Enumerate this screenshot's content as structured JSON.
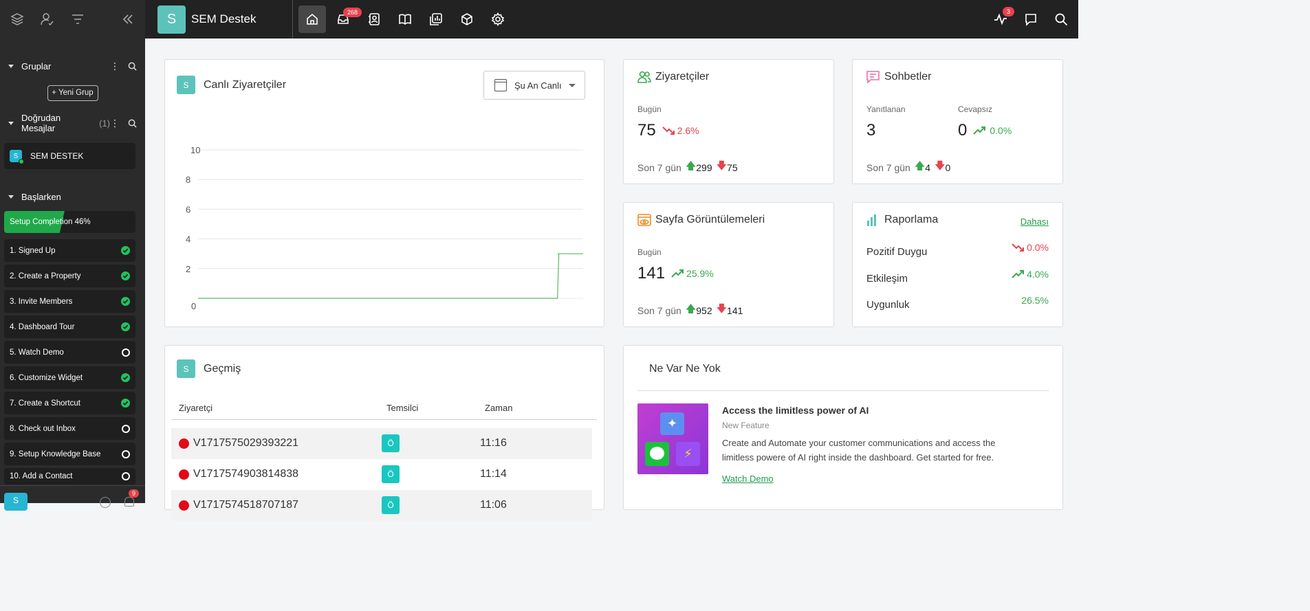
{
  "app": {
    "name": "SEM Destek",
    "logo_letter": "S"
  },
  "nav": {
    "inbox_badge": "268",
    "activity_badge": "3"
  },
  "sidebar": {
    "groups_label": "Gruplar",
    "new_group_label": "+ Yeni Grup",
    "dm_label": "Doğrudan Mesajlar",
    "dm_count": "(1)",
    "dm_item": {
      "avatar": "S",
      "name": "SEM DESTEK"
    },
    "getting_started_label": "Başlarken",
    "setup": {
      "label": "Setup Completion 46%",
      "progress": 0.46
    },
    "steps": [
      {
        "label": "1. Signed Up",
        "done": true
      },
      {
        "label": "2. Create a Property",
        "done": true
      },
      {
        "label": "3. Invite Members",
        "done": true
      },
      {
        "label": "4. Dashboard Tour",
        "done": true
      },
      {
        "label": "5. Watch Demo",
        "done": false
      },
      {
        "label": "6. Customize Widget",
        "done": true
      },
      {
        "label": "7. Create a Shortcut",
        "done": true
      },
      {
        "label": "8. Check out Inbox",
        "done": false
      },
      {
        "label": "9. Setup Knowledge Base",
        "done": false
      },
      {
        "label": "10. Add a Contact",
        "done": false
      }
    ],
    "user_avatar": "S",
    "notif_badge": "9"
  },
  "live": {
    "title": "Canlı Ziyaretçiler",
    "icon_letter": "S",
    "range_label": "Şu An Canlı"
  },
  "chart_data": {
    "type": "line",
    "y_ticks": [
      "0",
      "2",
      "4",
      "6",
      "8",
      "10"
    ],
    "ylim": [
      0,
      10
    ],
    "series": [
      {
        "values": [
          0,
          0,
          0,
          0,
          0,
          0,
          0,
          0,
          0,
          0,
          0,
          0,
          0,
          0,
          0,
          0,
          0,
          0,
          0,
          0,
          0,
          0,
          0,
          0,
          0,
          0,
          0,
          0,
          3,
          3,
          3
        ]
      }
    ],
    "color": "#5cb85c",
    "grid": true
  },
  "visitors": {
    "title": "Ziyaretçiler",
    "today_label": "Bugün",
    "today_value": "75",
    "change": "2.6%",
    "last7_label": "Son 7 gün",
    "up": "299",
    "down": "75"
  },
  "chats": {
    "title": "Sohbetler",
    "answered_label": "Yanıtlanan",
    "answered_value": "3",
    "unanswered_label": "Cevapsız",
    "unanswered_value": "0",
    "change": "0.0%",
    "last7_label": "Son 7 gün",
    "up": "4",
    "down": "0"
  },
  "pageviews": {
    "title": "Sayfa Görüntülemeleri",
    "today_label": "Bugün",
    "today_value": "141",
    "change": "25.9%",
    "last7_label": "Son 7 gün",
    "up": "952",
    "down": "141"
  },
  "reports": {
    "title": "Raporlama",
    "more_label": "Dahası",
    "rows": [
      {
        "label": "Pozitif Duygu",
        "value": "0.0%",
        "trend": "down"
      },
      {
        "label": "Etkileşim",
        "value": "4.0%",
        "trend": "up"
      },
      {
        "label": "Uygunluk",
        "value": "26.5%",
        "trend": "none"
      }
    ]
  },
  "history": {
    "title": "Geçmiş",
    "icon_letter": "S",
    "headers": [
      "Ziyaretçi",
      "Temsilci",
      "Zaman"
    ],
    "rows": [
      {
        "visitor": "V1717575029393221",
        "agent": "Ö",
        "time": "11:16"
      },
      {
        "visitor": "V1717574903814838",
        "agent": "Ö",
        "time": "11:14"
      },
      {
        "visitor": "V1717574518707187",
        "agent": "Ö",
        "time": "11:06"
      }
    ]
  },
  "news": {
    "title": "Ne Var Ne Yok",
    "item_title": "Access the limitless power of AI",
    "item_tag": "New Feature",
    "item_desc": "Create and Automate your customer communications and access the limitless powere of AI right inside the dashboard. Get started for free.",
    "item_link": "Watch Demo"
  },
  "colors": {
    "accent_teal": "#5cc3bb",
    "green": "#1fa94a",
    "red": "#e8424c",
    "sidebar_bg": "#2b2b2b",
    "topbar_bg": "#222222"
  }
}
